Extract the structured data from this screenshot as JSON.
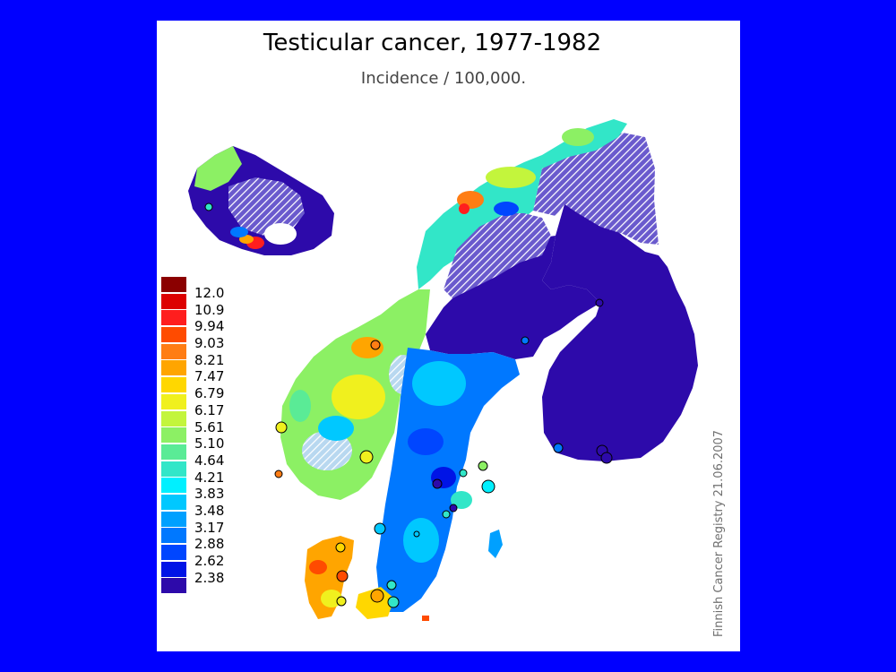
{
  "map": {
    "title": "Testicular cancer, 1977-1982",
    "subtitle": "Incidence / 100,000.",
    "credit": "Finnish Cancer Registry 21.06.2007",
    "legend": [
      {
        "label": "12.0",
        "color": "#8b0000"
      },
      {
        "label": "10.9",
        "color": "#dd0000"
      },
      {
        "label": "9.94",
        "color": "#ff1e1e"
      },
      {
        "label": "9.03",
        "color": "#ff4b00"
      },
      {
        "label": "8.21",
        "color": "#ff7d14"
      },
      {
        "label": "7.47",
        "color": "#ffa500"
      },
      {
        "label": "6.79",
        "color": "#ffd700"
      },
      {
        "label": "6.17",
        "color": "#f0f01e"
      },
      {
        "label": "5.61",
        "color": "#c3f53c"
      },
      {
        "label": "5.10",
        "color": "#8cf064"
      },
      {
        "label": "4.64",
        "color": "#5aeb96"
      },
      {
        "label": "4.21",
        "color": "#32e6c8"
      },
      {
        "label": "3.83",
        "color": "#00f0ff"
      },
      {
        "label": "3.48",
        "color": "#00c8ff"
      },
      {
        "label": "3.17",
        "color": "#00a0ff"
      },
      {
        "label": "2.88",
        "color": "#0078ff"
      },
      {
        "label": "2.62",
        "color": "#0046ff"
      },
      {
        "label": "2.38",
        "color": "#0014e6"
      },
      {
        "label": "",
        "color": "#2d0aaa"
      }
    ]
  }
}
